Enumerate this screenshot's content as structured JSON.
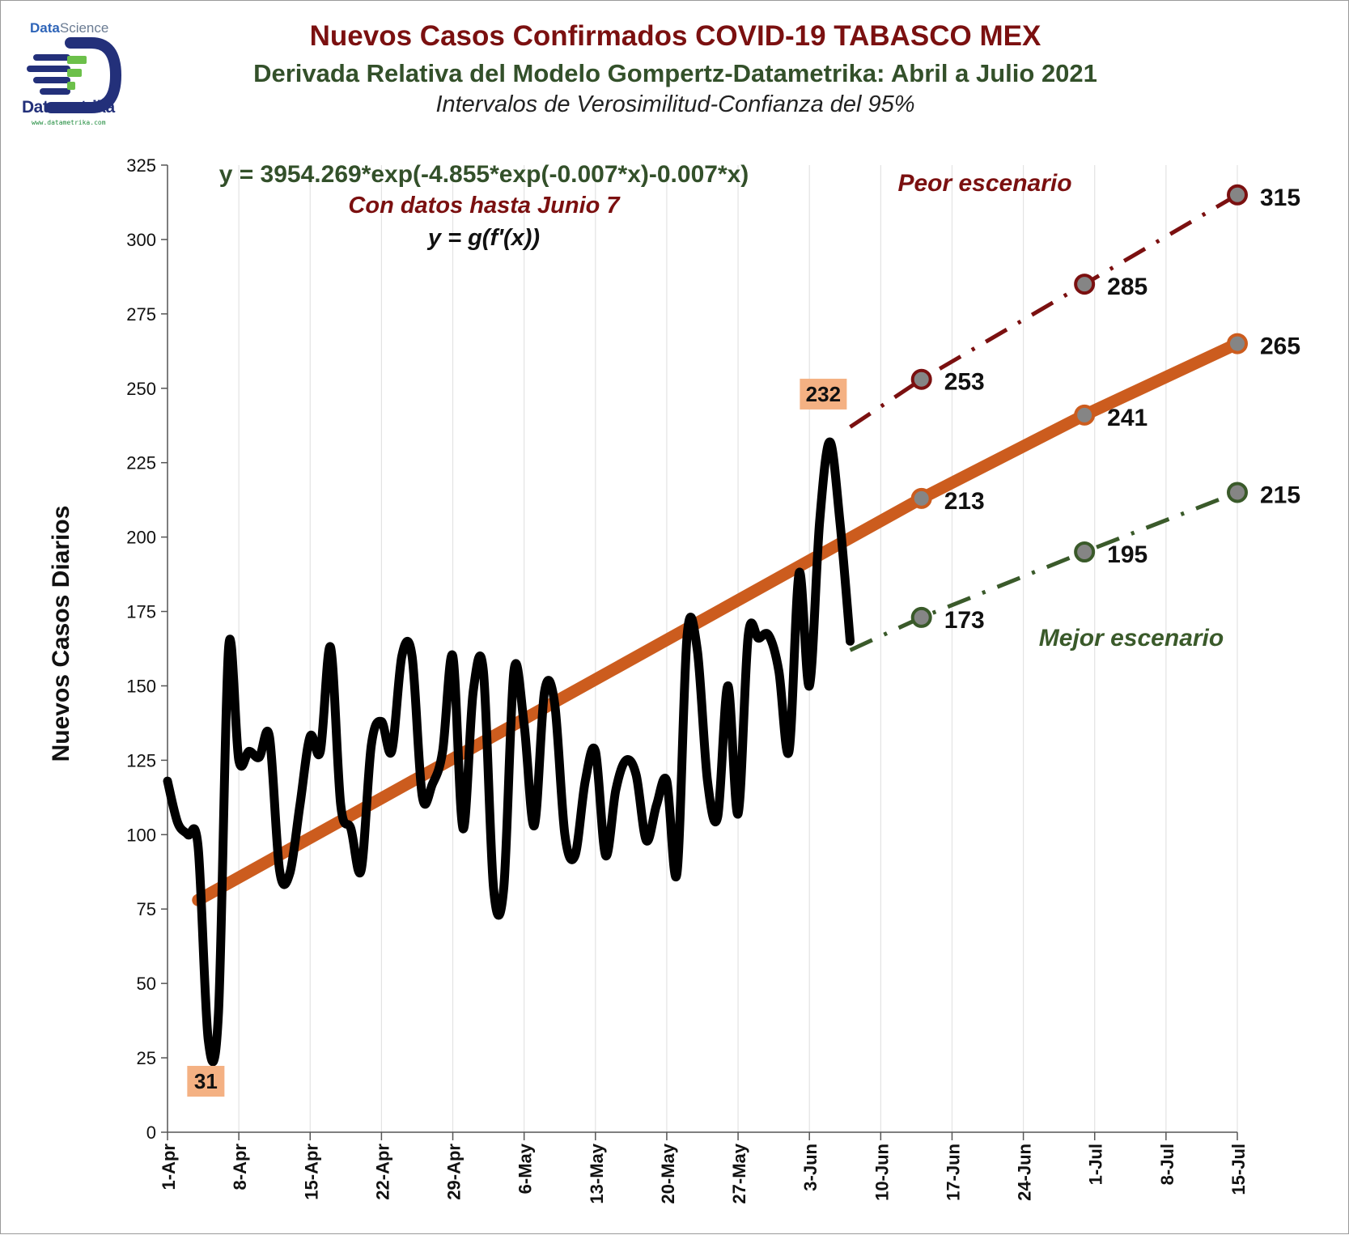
{
  "header": {
    "title": "Nuevos Casos Confirmados COVID-19 TABASCO MEX",
    "subtitle": "Derivada Relativa del Modelo Gompertz-Datametrika: Abril a Julio 2021",
    "subtitle2": "Intervalos de Verosimilitud-Confianza del 95%"
  },
  "logo": {
    "top_a": "Data",
    "top_b": "Science",
    "name": "Datametrika",
    "url": "www.datametrika.com"
  },
  "colors": {
    "title": "#7b1010",
    "subtitle": "#33502a",
    "observed": "#000000",
    "model": "#cc5c1e",
    "worst": "#7b1010",
    "best": "#3a5a2a",
    "marker_fill": "#858585",
    "label_box": "#f4b183"
  },
  "annotations": {
    "equation": "y = 3954.269*exp(-4.855*exp(-0.007*x)-0.007*x)",
    "data_note": "Con datos hasta Junio 7",
    "formula": "y = g(f'(x))",
    "worst_label": "Peor escenario",
    "best_label": "Mejor escenario"
  },
  "chart_data": {
    "type": "line",
    "title": "Nuevos Casos Confirmados COVID-19 TABASCO MEX",
    "ylabel": "Nuevos Casos Diarios",
    "xlabel": "",
    "ylim": [
      0,
      325
    ],
    "yticks": [
      0,
      25,
      50,
      75,
      100,
      125,
      150,
      175,
      200,
      225,
      250,
      275,
      300,
      325
    ],
    "xrange": [
      "2021-04-01",
      "2021-07-15"
    ],
    "xtick_labels": [
      "1-Apr",
      "8-Apr",
      "15-Apr",
      "22-Apr",
      "29-Apr",
      "6-May",
      "13-May",
      "20-May",
      "27-May",
      "3-Jun",
      "10-Jun",
      "17-Jun",
      "24-Jun",
      "1-Jul",
      "8-Jul",
      "15-Jul"
    ],
    "xtick_dates": [
      "2021-04-01",
      "2021-04-08",
      "2021-04-15",
      "2021-04-22",
      "2021-04-29",
      "2021-05-06",
      "2021-05-13",
      "2021-05-20",
      "2021-05-27",
      "2021-06-03",
      "2021-06-10",
      "2021-06-17",
      "2021-06-24",
      "2021-07-01",
      "2021-07-08",
      "2021-07-15"
    ],
    "grid": "vertical",
    "series": [
      {
        "name": "",
        "role": "observed",
        "x": [
          "2021-04-01",
          "2021-04-02",
          "2021-04-03",
          "2021-04-04",
          "2021-04-05",
          "2021-04-06",
          "2021-04-07",
          "2021-04-08",
          "2021-04-09",
          "2021-04-10",
          "2021-04-11",
          "2021-04-12",
          "2021-04-13",
          "2021-04-14",
          "2021-04-15",
          "2021-04-16",
          "2021-04-17",
          "2021-04-18",
          "2021-04-19",
          "2021-04-20",
          "2021-04-21",
          "2021-04-22",
          "2021-04-23",
          "2021-04-24",
          "2021-04-25",
          "2021-04-26",
          "2021-04-27",
          "2021-04-28",
          "2021-04-29",
          "2021-04-30",
          "2021-05-01",
          "2021-05-02",
          "2021-05-03",
          "2021-05-04",
          "2021-05-05",
          "2021-05-06",
          "2021-05-07",
          "2021-05-08",
          "2021-05-09",
          "2021-05-10",
          "2021-05-11",
          "2021-05-12",
          "2021-05-13",
          "2021-05-14",
          "2021-05-15",
          "2021-05-16",
          "2021-05-17",
          "2021-05-18",
          "2021-05-19",
          "2021-05-20",
          "2021-05-21",
          "2021-05-22",
          "2021-05-23",
          "2021-05-24",
          "2021-05-25",
          "2021-05-26",
          "2021-05-27",
          "2021-05-28",
          "2021-05-29",
          "2021-05-30",
          "2021-05-31",
          "2021-06-01",
          "2021-06-02",
          "2021-06-03",
          "2021-06-04",
          "2021-06-05",
          "2021-06-06",
          "2021-06-07"
        ],
        "y": [
          118,
          104,
          100,
          96,
          31,
          40,
          163,
          125,
          128,
          126,
          133,
          88,
          87,
          110,
          133,
          128,
          163,
          110,
          102,
          88,
          130,
          138,
          128,
          160,
          160,
          113,
          117,
          128,
          160,
          102,
          148,
          155,
          82,
          82,
          155,
          137,
          103,
          148,
          144,
          100,
          93,
          118,
          128,
          93,
          115,
          125,
          120,
          98,
          110,
          118,
          87,
          167,
          162,
          118,
          106,
          150,
          107,
          167,
          166,
          167,
          155,
          128,
          188,
          150,
          205,
          232,
          205,
          165
        ]
      },
      {
        "name": "",
        "role": "model",
        "x": [
          "2021-04-04",
          "2021-06-14",
          "2021-06-30",
          "2021-07-15"
        ],
        "y": [
          78,
          213,
          241,
          265
        ]
      },
      {
        "name": "",
        "role": "worst",
        "x": [
          "2021-06-07",
          "2021-06-14",
          "2021-06-30",
          "2021-07-15"
        ],
        "y": [
          237,
          253,
          285,
          315
        ]
      },
      {
        "name": "",
        "role": "best",
        "x": [
          "2021-06-07",
          "2021-06-14",
          "2021-06-30",
          "2021-07-15"
        ],
        "y": [
          162,
          173,
          195,
          215
        ]
      }
    ],
    "data_labels": [
      {
        "series": "worst",
        "date": "2021-06-14",
        "text": "253"
      },
      {
        "series": "worst",
        "date": "2021-06-30",
        "text": "285"
      },
      {
        "series": "worst",
        "date": "2021-07-15",
        "text": "315"
      },
      {
        "series": "model",
        "date": "2021-06-14",
        "text": "213"
      },
      {
        "series": "model",
        "date": "2021-06-30",
        "text": "241"
      },
      {
        "series": "model",
        "date": "2021-07-15",
        "text": "265"
      },
      {
        "series": "best",
        "date": "2021-06-14",
        "text": "173"
      },
      {
        "series": "best",
        "date": "2021-06-30",
        "text": "195"
      },
      {
        "series": "best",
        "date": "2021-07-15",
        "text": "215"
      }
    ],
    "callouts": [
      {
        "date": "2021-04-05",
        "value": 31,
        "text": "31"
      },
      {
        "date": "2021-06-05",
        "value": 232,
        "text": "232"
      }
    ]
  }
}
